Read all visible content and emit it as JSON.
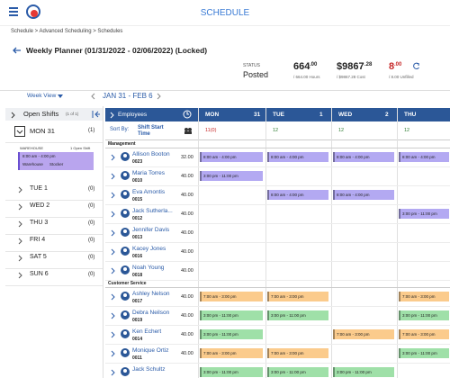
{
  "header": {
    "title": "SCHEDULE"
  },
  "breadcrumb": "Schedule > Advanced Scheduling > Schedules",
  "page_title": "Weekly Planner (01/31/2022 - 02/06/2022) (Locked)",
  "status": {
    "label": "STATUS",
    "value": "Posted"
  },
  "stats": [
    {
      "main": "664",
      "fraction": ".00",
      "caption": "/ 664.00 Hours",
      "color": "#222222"
    },
    {
      "main": "$9867",
      "fraction": ".28",
      "caption": "/ $9867.28 Cost",
      "color": "#222222"
    },
    {
      "main": "8",
      "fraction": ".00",
      "caption": "/ 8.00 Unfilled",
      "color": "#c62828"
    }
  ],
  "toolbar": {
    "view": "Week View",
    "range": "JAN 31 - FEB 6"
  },
  "open_shifts": {
    "title": "Open Shifts",
    "count": "(1 of 1)",
    "days": [
      {
        "label": "MON 31",
        "count": "(1)",
        "card": {
          "location": "WAREHOUSE",
          "summary": "1 Open Shift",
          "time": "8:00 am - 4:00 pm",
          "details": [
            "Warehouse",
            "Stocker"
          ]
        }
      },
      {
        "label": "TUE 1",
        "count": "(0)"
      },
      {
        "label": "WED 2",
        "count": "(0)"
      },
      {
        "label": "THU 3",
        "count": "(0)"
      },
      {
        "label": "FRI 4",
        "count": "(0)"
      },
      {
        "label": "SAT 5",
        "count": "(0)"
      },
      {
        "label": "SUN 6",
        "count": "(0)"
      }
    ]
  },
  "grid": {
    "employees_label": "Employees",
    "sort_label": "Sort By:",
    "sort_value": "Shift Start Time",
    "days": [
      {
        "name": "MON",
        "date": "31",
        "count": "11(0)",
        "count_color": "#c62828"
      },
      {
        "name": "TUE",
        "date": "1",
        "count": "12",
        "count_color": "#2e7d32"
      },
      {
        "name": "WED",
        "date": "2",
        "count": "12",
        "count_color": "#2e7d32"
      },
      {
        "name": "THU",
        "count": "12",
        "count_color": "#2e7d32"
      }
    ],
    "groups": [
      {
        "name": "Management",
        "employees": [
          {
            "name": "Allison Booton",
            "id": "0023",
            "hours": "32.00",
            "shifts": [
              {
                "time": "8:00 am - 4:00 pm",
                "color": "#b3a9f2"
              },
              {
                "time": "8:00 am - 4:00 pm",
                "color": "#b3a9f2"
              },
              {
                "time": "8:00 am - 4:00 pm",
                "color": "#b3a9f2"
              },
              {
                "time": "8:00 am - 4:00 pm",
                "color": "#b3a9f2"
              }
            ]
          },
          {
            "name": "Maria Torres",
            "id": "0010",
            "hours": "40.00",
            "shifts": [
              {
                "time": "3:00 pm - 11:00 pm",
                "color": "#b3a9f2"
              },
              null,
              null,
              null
            ]
          },
          {
            "name": "Eva Amontis",
            "id": "0015",
            "hours": "40.00",
            "shifts": [
              null,
              {
                "time": "8:00 am - 4:00 pm",
                "color": "#b3a9f2"
              },
              {
                "time": "8:00 am - 4:00 pm",
                "color": "#b3a9f2"
              },
              null
            ]
          },
          {
            "name": "Jack Sutherla...",
            "id": "0012",
            "hours": "40.00",
            "shifts": [
              null,
              null,
              null,
              {
                "time": "3:00 pm - 11:00 pm",
                "color": "#b3a9f2"
              }
            ]
          },
          {
            "name": "Jennifer Davis",
            "id": "0013",
            "hours": "40.00",
            "shifts": [
              null,
              null,
              null,
              null
            ]
          },
          {
            "name": "Kacey Jones",
            "id": "0016",
            "hours": "40.00",
            "shifts": [
              null,
              null,
              null,
              null
            ]
          },
          {
            "name": "Noah Young",
            "id": "0018",
            "hours": "40.00",
            "shifts": [
              null,
              null,
              null,
              null
            ]
          }
        ]
      },
      {
        "name": "Customer Service",
        "employees": [
          {
            "name": "Ashley Nelson",
            "id": "0017",
            "hours": "40.00",
            "shifts": [
              {
                "time": "7:00 am - 3:00 pm",
                "color": "#fbcb8c"
              },
              {
                "time": "7:00 am - 3:00 pm",
                "color": "#fbcb8c"
              },
              null,
              {
                "time": "7:00 am - 3:00 pm",
                "color": "#fbcb8c"
              }
            ]
          },
          {
            "name": "Debra Neilson",
            "id": "0019",
            "hours": "40.00",
            "shifts": [
              {
                "time": "3:00 pm - 11:00 pm",
                "color": "#9fe0a8"
              },
              {
                "time": "3:00 pm - 11:00 pm",
                "color": "#9fe0a8"
              },
              null,
              {
                "time": "3:00 pm - 11:00 pm",
                "color": "#9fe0a8"
              }
            ]
          },
          {
            "name": "Ken Echert",
            "id": "0014",
            "hours": "40.00",
            "shifts": [
              {
                "time": "3:00 pm - 11:00 pm",
                "color": "#9fe0a8"
              },
              null,
              {
                "time": "7:00 am - 3:00 pm",
                "color": "#fbcb8c"
              },
              {
                "time": "7:00 am - 3:00 pm",
                "color": "#fbcb8c"
              }
            ]
          },
          {
            "name": "Monique Ortiz",
            "id": "0011",
            "hours": "40.00",
            "shifts": [
              {
                "time": "7:00 am - 3:00 pm",
                "color": "#fbcb8c"
              },
              {
                "time": "7:00 am - 3:00 pm",
                "color": "#fbcb8c"
              },
              null,
              {
                "time": "3:00 pm - 11:00 pm",
                "color": "#9fe0a8"
              }
            ]
          },
          {
            "name": "Jack Schultz",
            "shifts": [
              {
                "time": "3:00 pm - 11:00 pm",
                "color": "#9fe0a8"
              },
              {
                "time": "3:00 pm - 11:00 pm",
                "color": "#9fe0a8"
              },
              {
                "time": "3:00 pm - 11:00 pm",
                "color": "#9fe0a8"
              },
              null
            ]
          }
        ]
      }
    ]
  }
}
